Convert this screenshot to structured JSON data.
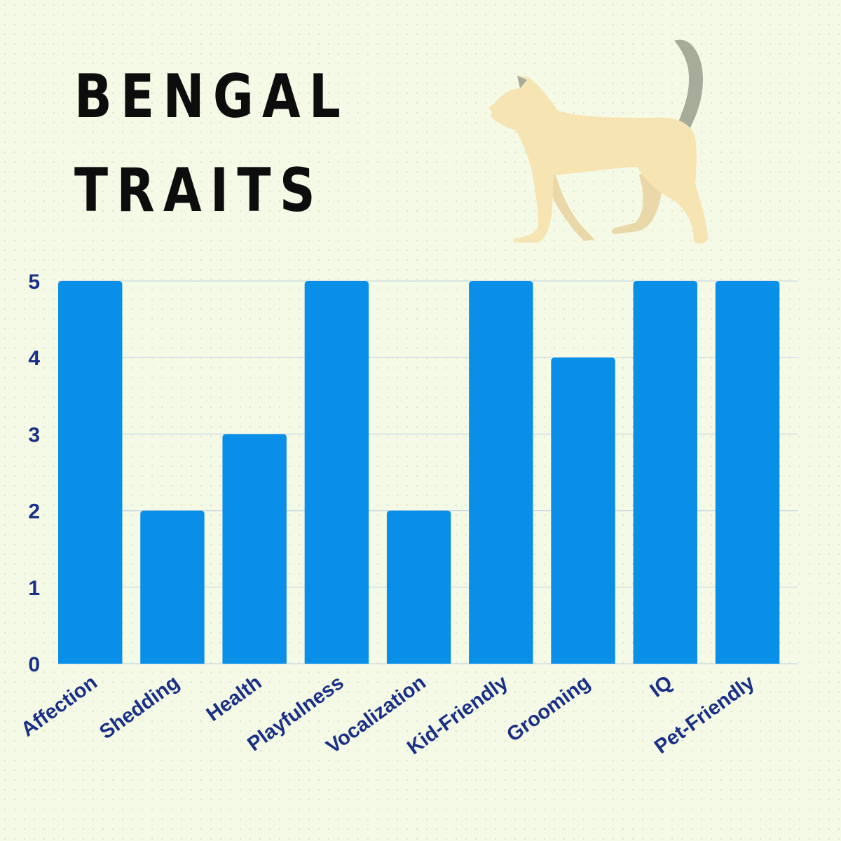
{
  "colors": {
    "background": "#f4fae6",
    "bar": "#0a8fe9",
    "axis_text": "#1a2f86",
    "gridline": "#c9d6e3",
    "cat_body": "#f7e4b3",
    "cat_tail": "#a6ab9a"
  },
  "icons": {
    "cat": "walking-cat-icon"
  },
  "chart_data": {
    "type": "bar",
    "title_lines": [
      "BENGAL",
      "TRAITS"
    ],
    "xlabel": "",
    "ylabel": "",
    "categories": [
      "Affection",
      "Shedding",
      "Health",
      "Playfulness",
      "Vocalization",
      "Kid-Friendly",
      "Grooming",
      "IQ",
      "Pet-Friendly"
    ],
    "values": [
      5,
      2,
      3,
      5,
      2,
      5,
      4,
      5,
      5
    ],
    "ylim": [
      0,
      5
    ],
    "yticks": [
      "0",
      "1",
      "2",
      "3",
      "4",
      "5"
    ],
    "grid": true,
    "legend": "none"
  }
}
